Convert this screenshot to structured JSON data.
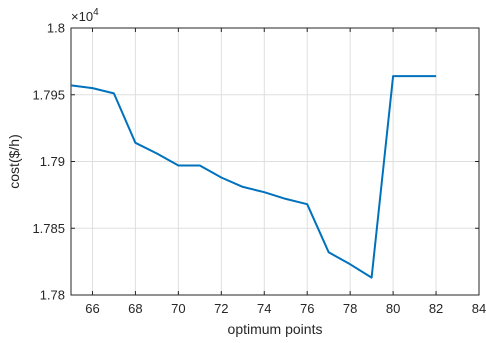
{
  "chart_data": {
    "type": "line",
    "xlabel": "optimum points",
    "ylabel": "cost($/h)",
    "y_exponent_label": "×10",
    "y_exponent_power": "4",
    "xlim": [
      65,
      84
    ],
    "ylim": [
      1.78,
      1.8
    ],
    "x_ticks": [
      66,
      68,
      70,
      72,
      74,
      76,
      78,
      80,
      82,
      84
    ],
    "y_ticks": [
      1.78,
      1.785,
      1.79,
      1.795,
      1.8
    ],
    "x_tick_labels": [
      "66",
      "68",
      "70",
      "72",
      "74",
      "76",
      "78",
      "80",
      "82",
      "84"
    ],
    "y_tick_labels": [
      "1.78",
      "1.785",
      "1.79",
      "1.795",
      "1.8"
    ],
    "grid": true,
    "color": "#0072BD",
    "series": [
      {
        "x": [
          65,
          66,
          67,
          68,
          69,
          70,
          71,
          72,
          73,
          74,
          75,
          76,
          77,
          78,
          79,
          80,
          81,
          82
        ],
        "y": [
          1.7957,
          1.7955,
          1.7951,
          1.7914,
          1.7906,
          1.7897,
          1.7897,
          1.7888,
          1.7881,
          1.7877,
          1.7872,
          1.7868,
          1.7832,
          1.7823,
          1.7813,
          1.7964,
          1.7964,
          1.7964
        ]
      }
    ]
  }
}
